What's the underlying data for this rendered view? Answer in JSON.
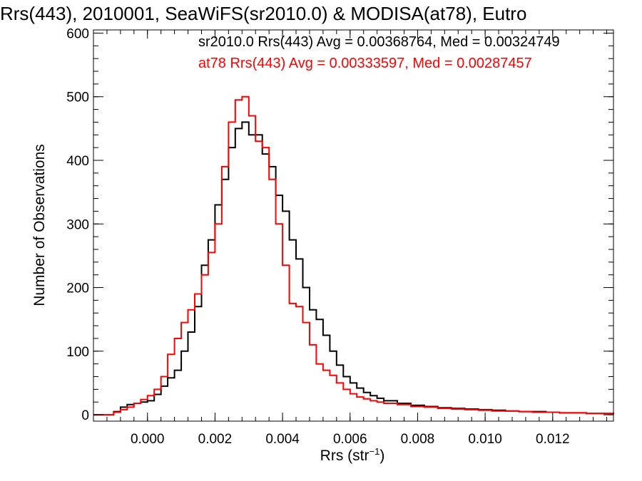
{
  "title": "Rrs(443), 2010001, SeaWiFS(sr2010.0) & MODISA(at78), Eutro",
  "stats": [
    {
      "text": "sr2010.0 Rrs(443) Avg = 0.00368764, Med = 0.00324749",
      "color": "#000000"
    },
    {
      "text": "at78 Rrs(443) Avg = 0.00333597, Med = 0.00287457",
      "color": "#ff0000"
    }
  ],
  "chart_data": {
    "type": "line",
    "step": true,
    "title": "Rrs(443), 2010001, SeaWiFS(sr2010.0) & MODISA(at78), Eutro",
    "xlabel": "Rrs (str",
    "xlabel_sup": "−1",
    "xlabel_end": ")",
    "ylabel": "Number of Observations",
    "xlim": [
      -0.0016,
      0.0138
    ],
    "ylim": [
      -10,
      605
    ],
    "xticks": [
      {
        "v": 0.0,
        "label": "0.000"
      },
      {
        "v": 0.002,
        "label": "0.002"
      },
      {
        "v": 0.004,
        "label": "0.004"
      },
      {
        "v": 0.006,
        "label": "0.006"
      },
      {
        "v": 0.008,
        "label": "0.008"
      },
      {
        "v": 0.01,
        "label": "0.010"
      },
      {
        "v": 0.012,
        "label": "0.012"
      }
    ],
    "yticks": [
      {
        "v": 0,
        "label": "0"
      },
      {
        "v": 100,
        "label": "100"
      },
      {
        "v": 200,
        "label": "200"
      },
      {
        "v": 300,
        "label": "300"
      },
      {
        "v": 400,
        "label": "400"
      },
      {
        "v": 500,
        "label": "500"
      },
      {
        "v": 600,
        "label": "600"
      }
    ],
    "series": [
      {
        "name": "sr2010.0",
        "color": "#000000",
        "x": [
          -0.0016,
          -0.0012,
          -0.001,
          -0.0008,
          -0.0006,
          -0.0004,
          -0.0002,
          0.0,
          0.0002,
          0.0004,
          0.0006,
          0.0008,
          0.001,
          0.0012,
          0.0014,
          0.0016,
          0.0018,
          0.002,
          0.0022,
          0.0024,
          0.0026,
          0.0028,
          0.003,
          0.0032,
          0.0034,
          0.0036,
          0.0038,
          0.004,
          0.0042,
          0.0044,
          0.0046,
          0.0048,
          0.005,
          0.0052,
          0.0054,
          0.0056,
          0.0058,
          0.006,
          0.0062,
          0.0064,
          0.0066,
          0.0068,
          0.007,
          0.0074,
          0.0078,
          0.0082,
          0.0086,
          0.009,
          0.0094,
          0.0098,
          0.0102,
          0.0106,
          0.011,
          0.0114,
          0.0118,
          0.0122,
          0.0126,
          0.013,
          0.0134,
          0.0138
        ],
        "y": [
          0,
          0,
          5,
          12,
          16,
          18,
          20,
          22,
          32,
          45,
          58,
          70,
          100,
          130,
          170,
          235,
          275,
          330,
          370,
          420,
          450,
          460,
          440,
          440,
          410,
          390,
          345,
          320,
          275,
          245,
          200,
          165,
          150,
          125,
          100,
          78,
          60,
          50,
          42,
          35,
          30,
          26,
          22,
          18,
          15,
          13,
          11,
          10,
          9,
          8,
          7,
          6,
          5,
          5,
          4,
          3,
          3,
          2,
          2,
          1
        ]
      },
      {
        "name": "at78",
        "color": "#ff0000",
        "x": [
          -0.0016,
          -0.0012,
          -0.001,
          -0.0008,
          -0.0006,
          -0.0004,
          -0.0002,
          0.0,
          0.0002,
          0.0004,
          0.0006,
          0.0008,
          0.001,
          0.0012,
          0.0014,
          0.0016,
          0.0018,
          0.002,
          0.0022,
          0.0024,
          0.0026,
          0.0028,
          0.003,
          0.0032,
          0.0034,
          0.0036,
          0.0038,
          0.004,
          0.0042,
          0.0044,
          0.0046,
          0.0048,
          0.005,
          0.0052,
          0.0054,
          0.0056,
          0.0058,
          0.006,
          0.0062,
          0.0064,
          0.0066,
          0.0068,
          0.007,
          0.0074,
          0.0078,
          0.0082,
          0.0086,
          0.009,
          0.0094,
          0.0098,
          0.0102,
          0.0106,
          0.011,
          0.0114,
          0.0118,
          0.0122,
          0.0126,
          0.013,
          0.0134,
          0.0138
        ],
        "y": [
          0,
          0,
          4,
          8,
          12,
          18,
          24,
          30,
          40,
          60,
          95,
          120,
          145,
          165,
          190,
          220,
          255,
          300,
          390,
          460,
          495,
          500,
          470,
          430,
          420,
          370,
          300,
          235,
          175,
          170,
          145,
          110,
          80,
          70,
          62,
          50,
          40,
          33,
          28,
          25,
          22,
          20,
          18,
          16,
          13,
          12,
          10,
          9,
          8,
          7,
          6,
          6,
          5,
          4,
          4,
          3,
          3,
          2,
          2,
          1
        ]
      }
    ]
  }
}
